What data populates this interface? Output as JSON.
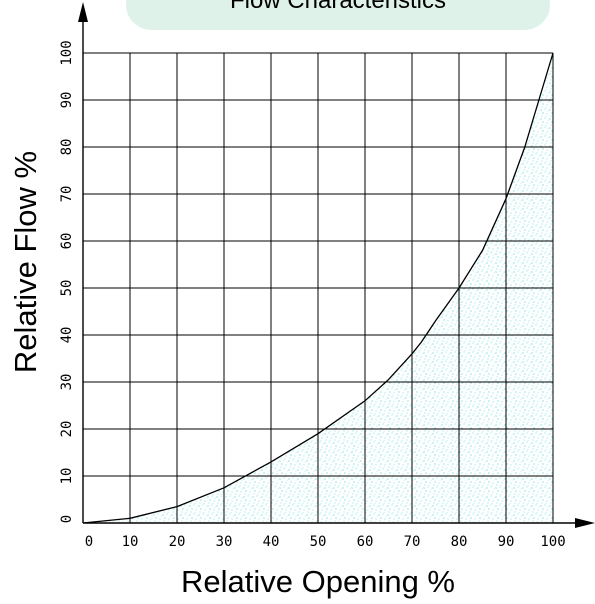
{
  "chart_data": {
    "type": "area",
    "title": "Flow Characteristics",
    "xlabel": "Relative Opening %",
    "ylabel": "Relative Flow %",
    "xlim": [
      0,
      100
    ],
    "ylim": [
      0,
      100
    ],
    "grid": true,
    "x_ticks": [
      0,
      10,
      20,
      30,
      40,
      50,
      60,
      70,
      80,
      90,
      100
    ],
    "y_ticks": [
      0,
      10,
      20,
      30,
      40,
      50,
      60,
      70,
      80,
      90,
      100
    ],
    "series": [
      {
        "x": [
          0,
          10,
          20,
          30,
          40,
          50,
          60,
          65,
          70,
          72,
          75,
          80,
          85,
          90,
          94,
          97,
          100
        ],
        "values": [
          0,
          1,
          3.5,
          7.5,
          13,
          19,
          26,
          30.5,
          36,
          38.5,
          43,
          50,
          58,
          69,
          80,
          90,
          100
        ]
      }
    ],
    "colors": {
      "curve": "#000000",
      "fill_stipple": "#4fd4d4",
      "title_background": "#dff2ea"
    }
  }
}
